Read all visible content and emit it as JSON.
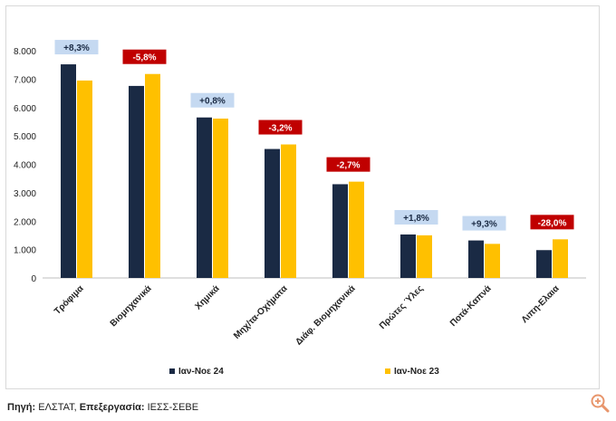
{
  "chart_data": {
    "type": "bar",
    "categories": [
      "Τρόφιμα",
      "Βιομηχανικά",
      "Χημικά",
      "Μηχ/τα-Οχήματα",
      "Διάφ. Βιομηχανικά",
      "Πρώτες Ύλες",
      "Ποτά-Καπνά",
      "Λιπη-Ελαια"
    ],
    "series": [
      {
        "name": "Ιαν-Νοε 24",
        "color": "#1a2a44",
        "values": [
          7520,
          6760,
          5650,
          4540,
          3300,
          1530,
          1320,
          980
        ]
      },
      {
        "name": "Ιαν-Νοε 23",
        "color": "#ffc000",
        "values": [
          6950,
          7180,
          5610,
          4700,
          3390,
          1500,
          1200,
          1360
        ]
      }
    ],
    "changes": [
      "+8,3%",
      "-5,8%",
      "+0,8%",
      "-3,2%",
      "-2,7%",
      "+1,8%",
      "+9,3%",
      "-28,0%"
    ],
    "change_colors": {
      "positive_bg": "#c5d9f1",
      "positive_text": "#1a2a44",
      "negative_bg": "#c00000",
      "negative_text": "#ffffff"
    },
    "y_ticks": [
      "0",
      "1.000",
      "2.000",
      "3.000",
      "4.000",
      "5.000",
      "6.000",
      "7.000",
      "8.000"
    ],
    "ylim": [
      0,
      8000
    ],
    "title": "",
    "xlabel": "",
    "ylabel": "",
    "grid": false,
    "legend_position": "bottom"
  },
  "source": {
    "label1": "Πηγή:",
    "text1": " ΕΛΣΤΑΤ, ",
    "label2": "Επεξεργασία:",
    "text2": " ΙΕΣΣ-ΣΕΒΕ"
  },
  "zoom_icon": "magnifier-plus-icon"
}
